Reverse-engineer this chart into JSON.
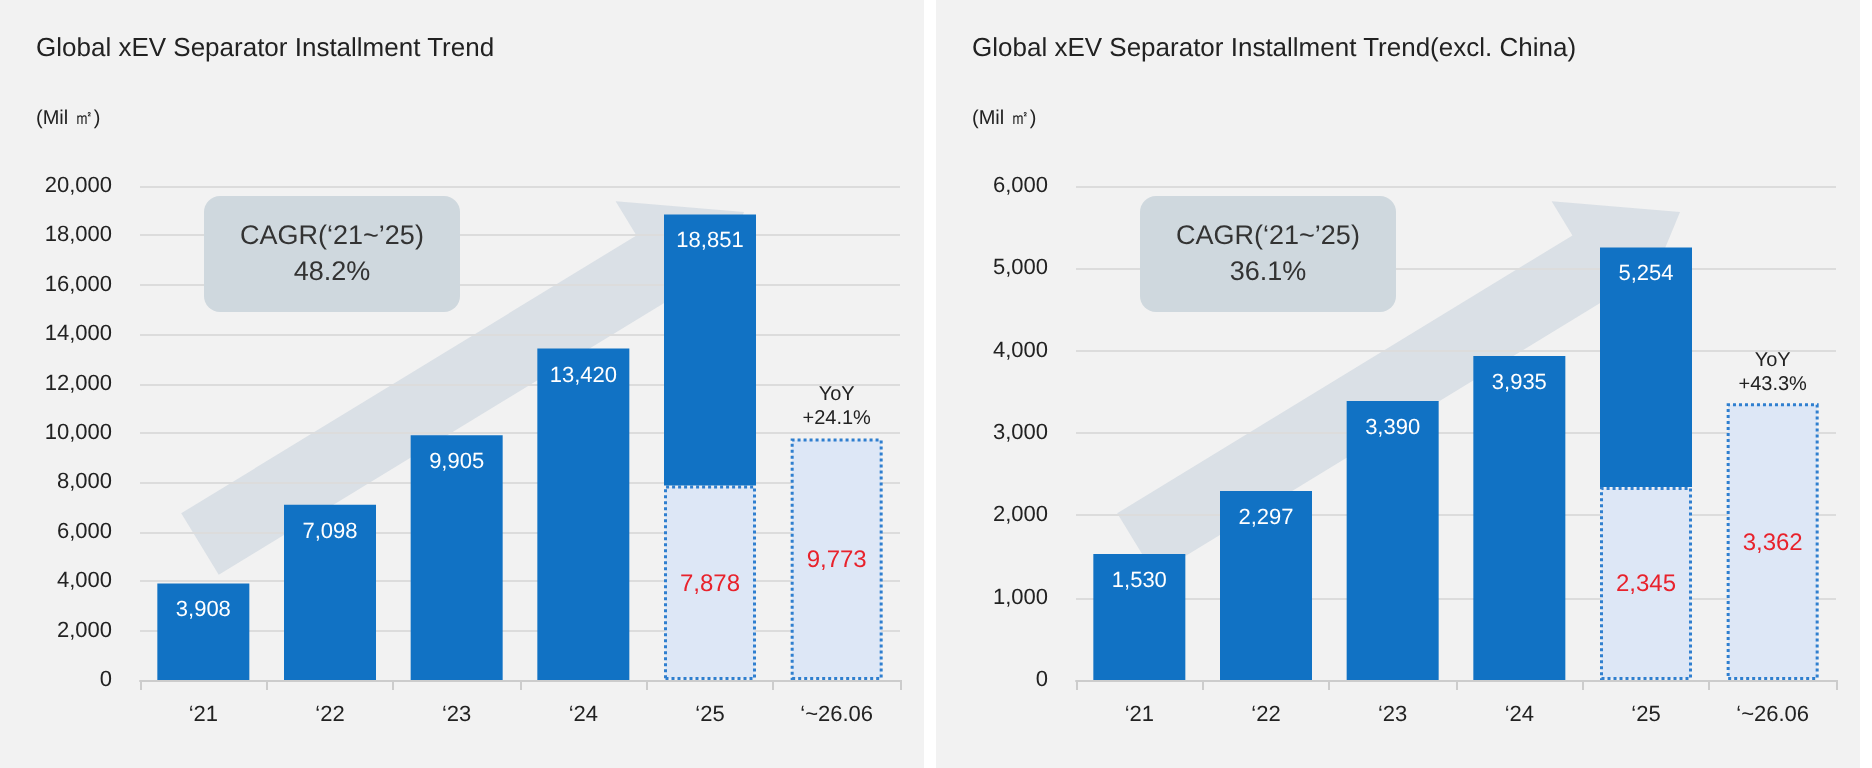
{
  "chart_data": [
    {
      "type": "bar",
      "title": "Global xEV Separator Installment Trend",
      "ylabel": "(Mil ㎡)",
      "categories": [
        "‘21",
        "‘22",
        "‘23",
        "‘24",
        "‘25",
        "‘~26.06"
      ],
      "stacked": true,
      "series": [
        {
          "color": "#dde7f6",
          "values": [
            null,
            null,
            null,
            null,
            7878,
            9773
          ],
          "value_labels": [
            null,
            null,
            null,
            null,
            "7,878",
            "9,773"
          ]
        },
        {
          "color": "#1172c4",
          "values": [
            3908,
            7098,
            9905,
            13420,
            10973,
            null
          ],
          "value_labels": [
            "3,908",
            "7,098",
            "9,905",
            "13,420",
            null,
            null
          ]
        }
      ],
      "totals": [
        null,
        null,
        null,
        null,
        "18,851",
        null
      ],
      "ylim": [
        0,
        20000
      ],
      "yticks": [
        0,
        {
          "value": 2000,
          "label": "2,000"
        },
        {
          "value": 4000,
          "label": "4,000"
        },
        {
          "value": 6000,
          "label": "6,000"
        },
        {
          "value": 8000,
          "label": "8,000"
        },
        {
          "value": 10000,
          "label": "10,000"
        },
        {
          "value": 12000,
          "label": "12,000"
        },
        {
          "value": 14000,
          "label": "14,000"
        },
        {
          "value": 16000,
          "label": "16,000"
        },
        {
          "value": 18000,
          "label": "18,000"
        },
        {
          "value": 20000,
          "label": "20,000"
        }
      ],
      "grid": "y",
      "annotations": [
        "CAGR(‘21~’25)\n48.2%",
        {
          "text": "YoY\n+24.1%",
          "x": "‘~26.06",
          "y": 9773
        }
      ]
    },
    {
      "type": "bar",
      "title": "Global xEV Separator Installment Trend(excl. China)",
      "ylabel": "(Mil ㎡)",
      "categories": [
        "‘21",
        "‘22",
        "‘23",
        "‘24",
        "‘25",
        "‘~26.06"
      ],
      "stacked": true,
      "series": [
        {
          "color": "#dde7f6",
          "values": [
            null,
            null,
            null,
            null,
            2345,
            3362
          ],
          "value_labels": [
            null,
            null,
            null,
            null,
            "2,345",
            "3,362"
          ]
        },
        {
          "color": "#1172c4",
          "values": [
            1530,
            2297,
            3390,
            3935,
            2909,
            null
          ],
          "value_labels": [
            "1,530",
            "2,297",
            "3,390",
            "3,935",
            null,
            null
          ]
        }
      ],
      "totals": [
        null,
        null,
        null,
        null,
        "5,254",
        null
      ],
      "ylim": [
        0,
        6000
      ],
      "yticks": [
        0,
        {
          "value": 1000,
          "label": "1,000"
        },
        {
          "value": 2000,
          "label": "2,000"
        },
        {
          "value": 3000,
          "label": "3,000"
        },
        {
          "value": 4000,
          "label": "4,000"
        },
        {
          "value": 5000,
          "label": "5,000"
        },
        {
          "value": 6000,
          "label": "6,000"
        }
      ],
      "grid": "y",
      "annotations": [
        "CAGR(‘21~’25)\n36.1%",
        {
          "text": "YoY\n+43.3%",
          "x": "‘~26.06",
          "y": 3362
        }
      ]
    }
  ]
}
